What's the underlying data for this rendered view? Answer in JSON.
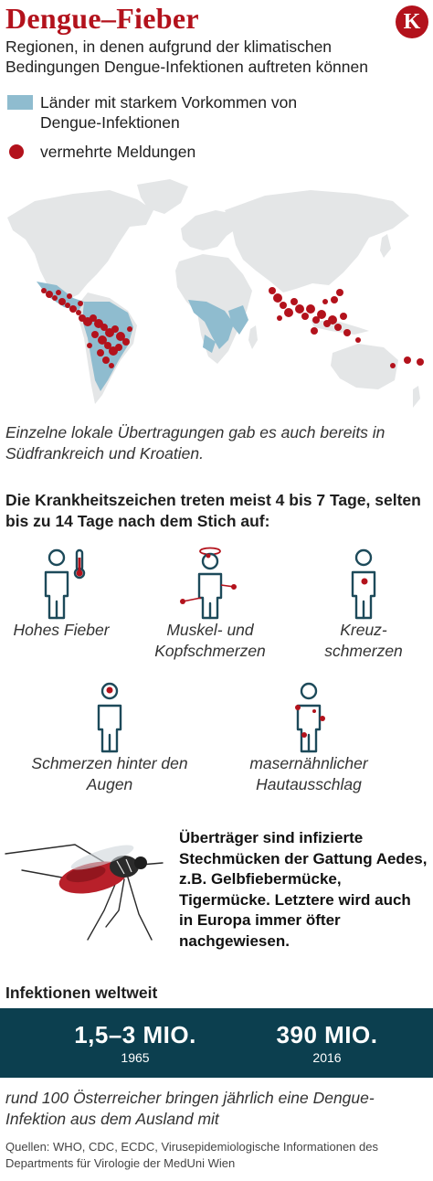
{
  "header": {
    "title": "Dengue–Fieber",
    "logo_letter": "K",
    "subtitle": "Regionen, in denen aufgrund der klimatischen Bedingungen Dengue-Infektionen auftreten können"
  },
  "legend": {
    "countries_label": "Länder mit starkem Vorkommen von Dengue-Infektionen",
    "reports_label": "vermehrte Meldungen"
  },
  "colors": {
    "brand_red": "#b3121c",
    "dengue_blue": "#8fbccf",
    "dark_teal": "#0c3f4f",
    "land_grey": "#e4e6e7"
  },
  "map_note": "Einzelne lokale  Übertragungen gab es auch bereits in Südfrankreich und Kroatien.",
  "symptoms": {
    "heading": "Die Krankheitszeichen treten meist 4 bis 7 Tage, selten bis zu 14 Tage nach dem Stich auf:",
    "items": [
      {
        "label": "Hohes Fieber",
        "icon": "fever-icon"
      },
      {
        "label": "Muskel- und Kopfschmerzen",
        "icon": "muscle-headache-icon"
      },
      {
        "label": "Kreuz-schmerzen",
        "icon": "back-pain-icon"
      },
      {
        "label": "Schmerzen hinter den Augen",
        "icon": "eye-pain-icon"
      },
      {
        "label": "masernähnlicher Hautausschlag",
        "icon": "rash-icon"
      }
    ]
  },
  "vector_text": "Überträger sind infizierte Stechmücken der Gattung Aedes, z.B. Gelbfiebermücke, Tigermücke. Letztere wird auch in Europa immer öfter nachgewiesen.",
  "infections": {
    "heading": "Infektionen weltweit",
    "stats": [
      {
        "value": "1,5–3 MIO.",
        "year": "1965"
      },
      {
        "value": "390 MIO.",
        "year": "2016"
      }
    ]
  },
  "austria_note": "rund 100 Österreicher bringen jährlich eine Dengue-Infektion aus dem Ausland mit",
  "sources": "Quellen: WHO, CDC, ECDC, Virusepidemiologische Informationen des Departments für Virologie der MedUni Wien"
}
